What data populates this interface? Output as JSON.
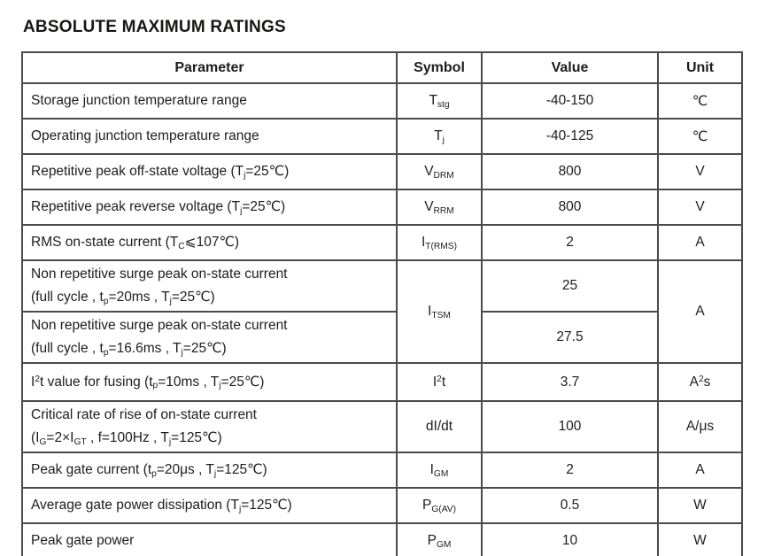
{
  "page": {
    "title": "ABSOLUTE MAXIMUM RATINGS"
  },
  "table": {
    "headers": {
      "parameter": "Parameter",
      "symbol": "Symbol",
      "value": "Value",
      "unit": "Unit"
    },
    "rows": [
      {
        "parameter": "Storage junction temperature range",
        "symbol": "T~stg~",
        "value": "-40-150",
        "unit": "℃"
      },
      {
        "parameter": "Operating junction temperature range",
        "symbol": "T~j~",
        "value": "-40-125",
        "unit": "℃"
      },
      {
        "parameter": "Repetitive peak off-state voltage (T~j~=25℃)",
        "symbol": "V~DRM~",
        "value": "800",
        "unit": "V"
      },
      {
        "parameter": "Repetitive peak reverse voltage (T~j~=25℃)",
        "symbol": "V~RRM~",
        "value": "800",
        "unit": "V"
      },
      {
        "parameter": "RMS on-state current (T~C~⩽107℃)",
        "symbol": "I~T(RMS)~",
        "value": "2",
        "unit": "A"
      },
      {
        "parameter": "Non repetitive surge peak on-state current\n(full cycle , t~p~=20ms , T~j~=25℃)",
        "symbol": "I~TSM~",
        "value": "25",
        "unit": "A"
      },
      {
        "parameter": "Non repetitive surge peak on-state current\n(full cycle , t~p~=16.6ms , T~j~=25℃)",
        "value": "27.5"
      },
      {
        "parameter": "I^2^t value for fusing (t~p~=10ms , T~j~=25℃)",
        "symbol": "I^2^t",
        "value": "3.7",
        "unit": "A^2^s"
      },
      {
        "parameter": "Critical rate of rise of on-state current\n(I~G~=2×I~GT~ , f=100Hz , T~j~=125℃)",
        "symbol": "dI/dt",
        "value": "100",
        "unit": "A/μs"
      },
      {
        "parameter": "Peak gate current (t~p~=20μs , T~j~=125℃)",
        "symbol": "I~GM~",
        "value": "2",
        "unit": "A"
      },
      {
        "parameter": "Average gate power dissipation (T~j~=125℃)",
        "symbol": "P~G(AV)~",
        "value": "0.5",
        "unit": "W"
      },
      {
        "parameter": "Peak gate power",
        "symbol": "P~GM~",
        "value": "10",
        "unit": "W"
      }
    ]
  }
}
